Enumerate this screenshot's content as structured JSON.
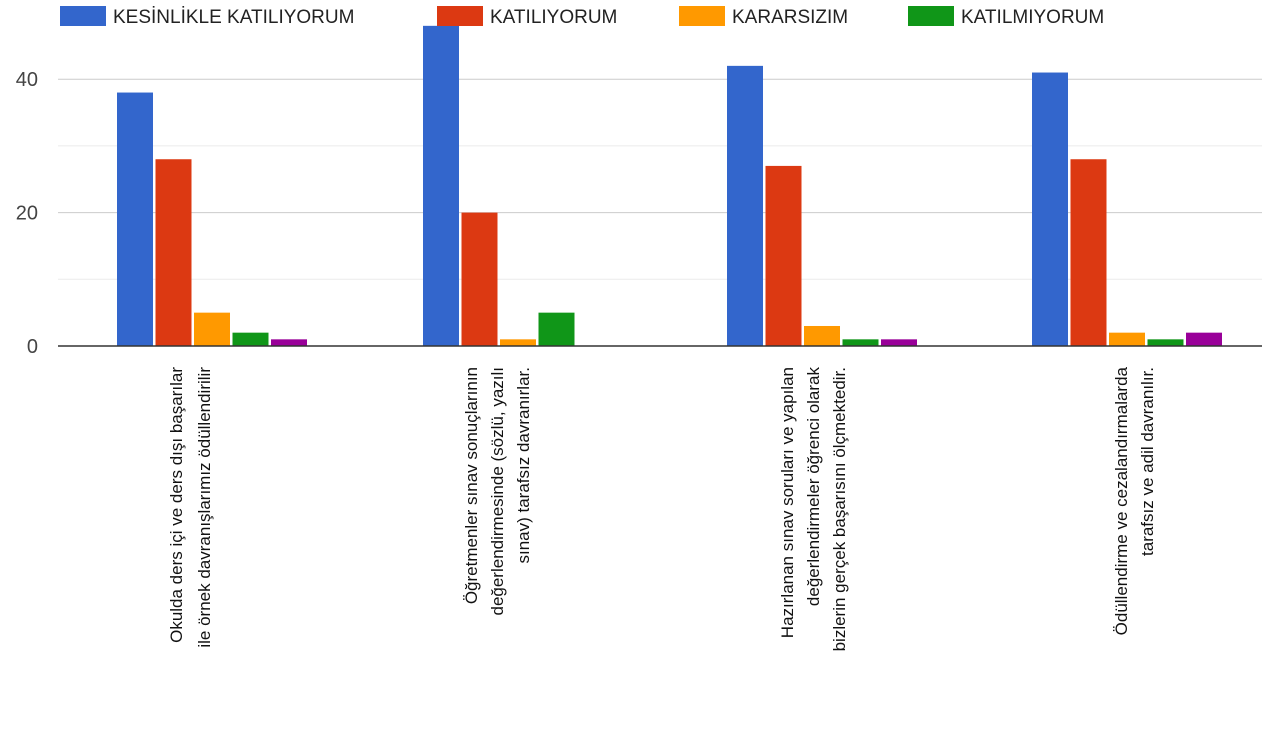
{
  "chart_data": {
    "type": "bar",
    "title": "",
    "xlabel": "",
    "ylabel": "",
    "ylim": [
      0,
      50
    ],
    "yticks": [
      0,
      20,
      40
    ],
    "grid": true,
    "legend_position": "top",
    "categories": [
      [
        "Okulda ders içi ve ders dışı başarılar",
        "ile örnek davranışlarımız ödüllendirilir"
      ],
      [
        "Öğretmenler sınav sonuçlarının",
        "değerlendirmesinde (sözlü, yazılı",
        "sınav) tarafsız davranırlar."
      ],
      [
        "Hazırlanan sınav soruları ve yapılan",
        "değerlendirmeler öğrenci olarak",
        "bizlerin gerçek başarısını ölçmektedir."
      ],
      [
        "Ödüllendirme ve cezalandırmalarda",
        "tarafsız ve adil davranılır."
      ]
    ],
    "series": [
      {
        "name": "KESİNLİKLE KATILIYORUM",
        "color": "#3366cc",
        "values": [
          38,
          48,
          42,
          41
        ]
      },
      {
        "name": "KATILIYORUM",
        "color": "#dc3912",
        "values": [
          28,
          20,
          27,
          28
        ]
      },
      {
        "name": "KARARSIZIM",
        "color": "#ff9900",
        "values": [
          5,
          1,
          3,
          2
        ]
      },
      {
        "name": "KATILMIYORUM",
        "color": "#109618",
        "values": [
          2,
          5,
          1,
          1
        ]
      },
      {
        "color": "#990099",
        "values": [
          1,
          0,
          1,
          2
        ]
      }
    ]
  }
}
